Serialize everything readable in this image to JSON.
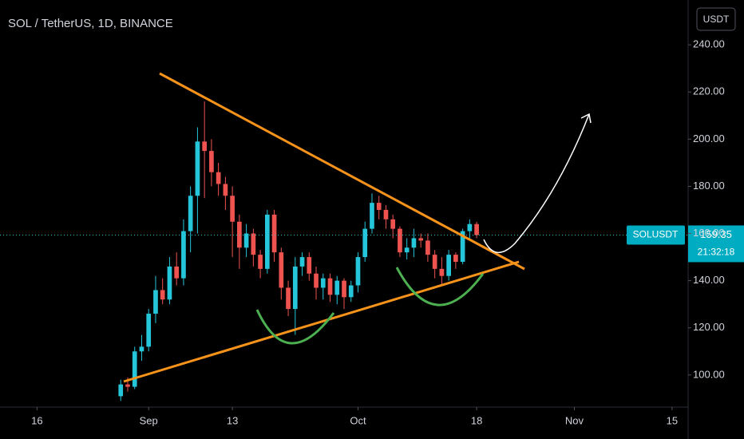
{
  "chart_data": {
    "type": "candlestick",
    "title": "SOL / TetherUS, 1D, BINANCE",
    "currency": "USDT",
    "symbol": "SOLUSDT",
    "countdown": "21:32:18",
    "up_color": "#26c6da",
    "down_color": "#ef5350",
    "x": [
      28,
      29,
      30,
      31,
      32,
      33,
      34,
      35,
      36,
      37,
      38,
      39,
      40,
      41,
      42,
      43,
      44,
      45,
      46,
      47,
      48,
      49,
      50,
      51,
      52,
      53,
      54,
      55,
      56,
      57,
      58,
      59,
      60,
      61,
      62,
      63,
      64,
      65,
      66,
      67,
      68,
      69,
      70,
      71,
      72,
      73,
      74,
      75,
      76,
      77,
      78,
      79
    ],
    "open": [
      91,
      96,
      95,
      110,
      112,
      126,
      136,
      132,
      146,
      141,
      161,
      176,
      199,
      195,
      186,
      181,
      176,
      165,
      154,
      160,
      151,
      145,
      168,
      152,
      137,
      128,
      146,
      150,
      143,
      137,
      141,
      134,
      140,
      133,
      138,
      150,
      162,
      173,
      170,
      166,
      162,
      152,
      154,
      158,
      157,
      151,
      145,
      142,
      151,
      148,
      161,
      164
    ],
    "high": [
      98,
      99,
      112,
      117,
      128,
      142,
      141,
      150,
      152,
      166,
      180,
      205,
      216,
      200,
      190,
      184,
      180,
      168,
      164,
      162,
      153,
      170,
      170,
      154,
      140,
      150,
      152,
      152,
      146,
      143,
      143,
      142,
      141,
      140,
      152,
      165,
      177,
      176,
      172,
      168,
      163,
      158,
      162,
      160,
      160,
      153,
      150,
      153,
      152,
      162,
      166,
      165
    ],
    "low": [
      89,
      93,
      94,
      106,
      110,
      122,
      130,
      130,
      138,
      138,
      152,
      160,
      175,
      180,
      176,
      170,
      150,
      145,
      150,
      146,
      141,
      143,
      148,
      132,
      125,
      117,
      142,
      140,
      132,
      132,
      131,
      130,
      128,
      131,
      135,
      148,
      160,
      166,
      162,
      158,
      150,
      149,
      150,
      154,
      148,
      141,
      138,
      140,
      145,
      147,
      158,
      158
    ],
    "close": [
      96,
      95,
      110,
      112,
      126,
      136,
      132,
      146,
      141,
      161,
      176,
      199,
      195,
      186,
      181,
      176,
      165,
      154,
      160,
      151,
      145,
      168,
      152,
      137,
      128,
      146,
      150,
      143,
      137,
      141,
      134,
      140,
      133,
      138,
      150,
      162,
      173,
      170,
      166,
      162,
      152,
      154,
      158,
      157,
      151,
      145,
      142,
      151,
      148,
      161,
      164,
      159.35
    ],
    "xlim": [
      10.7,
      109.3
    ],
    "xticks": [
      {
        "value": 16,
        "label": "16"
      },
      {
        "value": 32,
        "label": "Sep"
      },
      {
        "value": 44,
        "label": "13"
      },
      {
        "value": 62,
        "label": "Oct"
      },
      {
        "value": 79,
        "label": "18"
      },
      {
        "value": 93,
        "label": "Nov"
      },
      {
        "value": 107,
        "label": "15"
      }
    ],
    "ylim": [
      86.4,
      259
    ],
    "yticks": [
      {
        "value": 100,
        "label": "100.00"
      },
      {
        "value": 120,
        "label": "120.00"
      },
      {
        "value": 140,
        "label": "140.00"
      },
      {
        "value": 160,
        "label": "160.00"
      },
      {
        "value": 180,
        "label": "180.00"
      },
      {
        "value": 200,
        "label": "200.00"
      },
      {
        "value": 220,
        "label": "220.00"
      },
      {
        "value": 240,
        "label": "240.00"
      }
    ]
  }
}
